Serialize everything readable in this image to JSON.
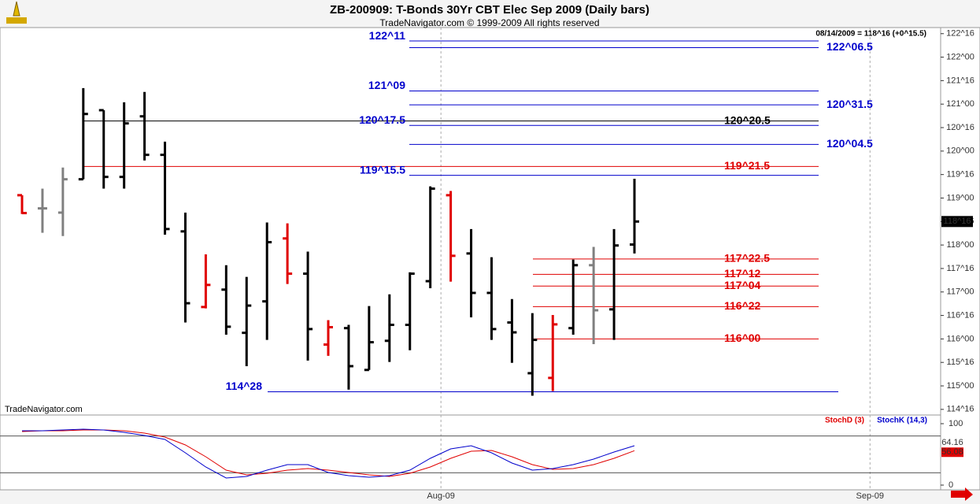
{
  "chart_data": [
    {
      "type": "ohlc",
      "title": "ZB-200909:  T-Bonds 30Yr CBT Elec Sep 2009  (Daily bars)",
      "subtitle": "TradeNavigator.com © 1999-2009 All rights reserved",
      "quote": "08/14/2009 = 118^16 (+0^15.5)",
      "watermark": "TradeNavigator.com",
      "last_price": {
        "value": 118.5,
        "label": "118^16"
      },
      "open": [
        119.06,
        118.78,
        118.69,
        119.4,
        120.87,
        119.45,
        120.74,
        119.92,
        118.29,
        116.68,
        117.05,
        116.13,
        116.8,
        118.14,
        117.39,
        115.88,
        116.23,
        115.34,
        115.96,
        116.3,
        117.23,
        119.06,
        117.82,
        116.98,
        116.35,
        115.27,
        115.17,
        116.23,
        117.57,
        116.63,
        118.01
      ],
      "high": [
        119.06,
        119.2,
        119.65,
        121.34,
        120.87,
        121.04,
        121.26,
        120.2,
        118.69,
        117.8,
        117.57,
        117.32,
        118.48,
        118.46,
        117.86,
        116.4,
        116.3,
        116.7,
        116.95,
        117.42,
        119.25,
        119.15,
        118.34,
        117.74,
        116.85,
        116.55,
        116.51,
        117.69,
        117.96,
        118.34,
        119.41
      ],
      "low": [
        118.66,
        118.26,
        118.19,
        119.4,
        119.2,
        119.2,
        119.8,
        118.22,
        116.35,
        116.65,
        116.09,
        115.42,
        115.98,
        117.17,
        115.54,
        115.64,
        114.92,
        115.34,
        115.51,
        115.76,
        117.08,
        117.22,
        116.46,
        115.98,
        115.49,
        114.79,
        114.89,
        116.09,
        115.89,
        115.98,
        117.82
      ],
      "close": [
        118.68,
        118.78,
        119.4,
        120.79,
        119.45,
        120.59,
        119.92,
        118.34,
        116.76,
        117.15,
        116.26,
        116.71,
        118.06,
        117.39,
        116.21,
        116.25,
        115.42,
        115.93,
        116.3,
        117.39,
        119.2,
        117.77,
        116.98,
        116.21,
        116.14,
        115.98,
        116.31,
        117.57,
        116.61,
        117.99,
        118.5
      ],
      "bar_colors": [
        "#e00000",
        "#808080",
        "#808080",
        "#000000",
        "#000000",
        "#000000",
        "#000000",
        "#000000",
        "#000000",
        "#e00000",
        "#000000",
        "#000000",
        "#000000",
        "#e00000",
        "#000000",
        "#e00000",
        "#000000",
        "#000000",
        "#000000",
        "#000000",
        "#000000",
        "#e00000",
        "#000000",
        "#000000",
        "#000000",
        "#000000",
        "#e00000",
        "#000000",
        "#808080",
        "#000000",
        "#000000"
      ],
      "levels": [
        {
          "label": "122^11",
          "value": 122.344,
          "color": "#0000cc"
        },
        {
          "label": "122^06.5",
          "value": 122.203,
          "color": "#0000cc"
        },
        {
          "label": "121^09",
          "value": 121.281,
          "color": "#0000cc"
        },
        {
          "label": "120^31.5",
          "value": 120.984,
          "color": "#0000cc"
        },
        {
          "label": "120^20.5",
          "value": 120.641,
          "color": "#000000"
        },
        {
          "label": "120^17.5",
          "value": 120.547,
          "color": "#0000cc"
        },
        {
          "label": "120^04.5",
          "value": 120.141,
          "color": "#0000cc"
        },
        {
          "label": "119^21.5",
          "value": 119.672,
          "color": "#e00000"
        },
        {
          "label": "119^15.5",
          "value": 119.484,
          "color": "#0000cc"
        },
        {
          "label": "117^22.5",
          "value": 117.703,
          "color": "#e00000"
        },
        {
          "label": "117^12",
          "value": 117.375,
          "color": "#e00000"
        },
        {
          "label": "117^04",
          "value": 117.125,
          "color": "#e00000"
        },
        {
          "label": "116^22",
          "value": 116.688,
          "color": "#e00000"
        },
        {
          "label": "116^00",
          "value": 116.0,
          "color": "#e00000"
        },
        {
          "label": "114^28",
          "value": 114.875,
          "color": "#0000cc"
        }
      ],
      "xlim": [
        -1.08,
        45
      ],
      "xticks": [
        {
          "value": 20.52,
          "label": "Aug-09"
        },
        {
          "value": 41.54,
          "label": "Sep-09"
        }
      ],
      "ylim": [
        114.38,
        122.63
      ],
      "yticks": [
        {
          "value": 122.5,
          "label": "122^16"
        },
        {
          "value": 122,
          "label": "122^00"
        },
        {
          "value": 121.5,
          "label": "121^16"
        },
        {
          "value": 121,
          "label": "121^00"
        },
        {
          "value": 120.5,
          "label": "120^16"
        },
        {
          "value": 120,
          "label": "120^00"
        },
        {
          "value": 119.5,
          "label": "119^16"
        },
        {
          "value": 119,
          "label": "119^00"
        },
        {
          "value": 118.5,
          "label": "118^16"
        },
        {
          "value": 118,
          "label": "118^00"
        },
        {
          "value": 117.5,
          "label": "117^16"
        },
        {
          "value": 117,
          "label": "117^00"
        },
        {
          "value": 116.5,
          "label": "116^16"
        },
        {
          "value": 116,
          "label": "116^00"
        },
        {
          "value": 115.5,
          "label": "115^16"
        },
        {
          "value": 115,
          "label": "115^00"
        },
        {
          "value": 114.5,
          "label": "114^16"
        }
      ]
    },
    {
      "type": "line",
      "xlim": [
        -1.08,
        45
      ],
      "ylim": [
        -7.7,
        114.1
      ],
      "yticks": [
        100,
        0
      ],
      "reference_lines": [
        80,
        20
      ],
      "series": [
        {
          "name": "StochD (3)",
          "color": "#e00000",
          "values": [
            87.2,
            88.5,
            88.5,
            89.7,
            89.7,
            88.5,
            84.6,
            78.2,
            65.4,
            46.2,
            24.4,
            16.7,
            19.2,
            24.4,
            26.9,
            24.4,
            20.5,
            16.7,
            14.1,
            19.2,
            29.5,
            43.6,
            55.1,
            56.4,
            46.2,
            33.3,
            25.6,
            26.9,
            33.3,
            43.6,
            56.08
          ]
        },
        {
          "name": "StochK (14,3)",
          "color": "#0000cc",
          "values": [
            88.5,
            88.5,
            89.7,
            91.0,
            89.7,
            85.9,
            80.8,
            74.4,
            52.6,
            29.5,
            11.5,
            14.1,
            24.4,
            33.3,
            33.3,
            20.5,
            15.4,
            12.8,
            15.4,
            24.4,
            43.6,
            59.0,
            64.1,
            52.6,
            35.9,
            24.4,
            26.9,
            33.3,
            42.3,
            53.8,
            64.16
          ]
        }
      ]
    }
  ]
}
